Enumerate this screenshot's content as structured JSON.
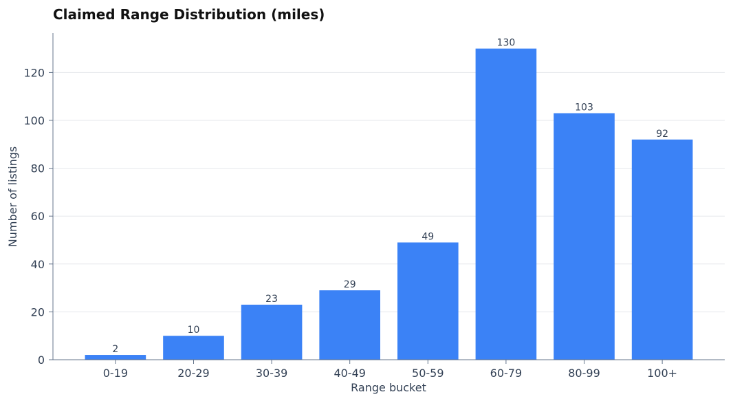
{
  "chart_data": {
    "type": "bar",
    "title": "Claimed Range Distribution (miles)",
    "xlabel": "Range bucket",
    "ylabel": "Number of listings",
    "categories": [
      "0-19",
      "20-29",
      "30-39",
      "40-49",
      "50-59",
      "60-79",
      "80-99",
      "100+"
    ],
    "values": [
      2,
      10,
      23,
      29,
      49,
      130,
      103,
      92
    ],
    "ylim": [
      0,
      136.5
    ],
    "yticks": [
      0,
      20,
      40,
      60,
      80,
      100,
      120
    ],
    "grid": "y-only",
    "legend": "none",
    "colors": {
      "bar": "#3b82f6",
      "axis": "#64748b",
      "grid": "#e5e7eb",
      "text": "#334155",
      "title": "#111111"
    }
  }
}
